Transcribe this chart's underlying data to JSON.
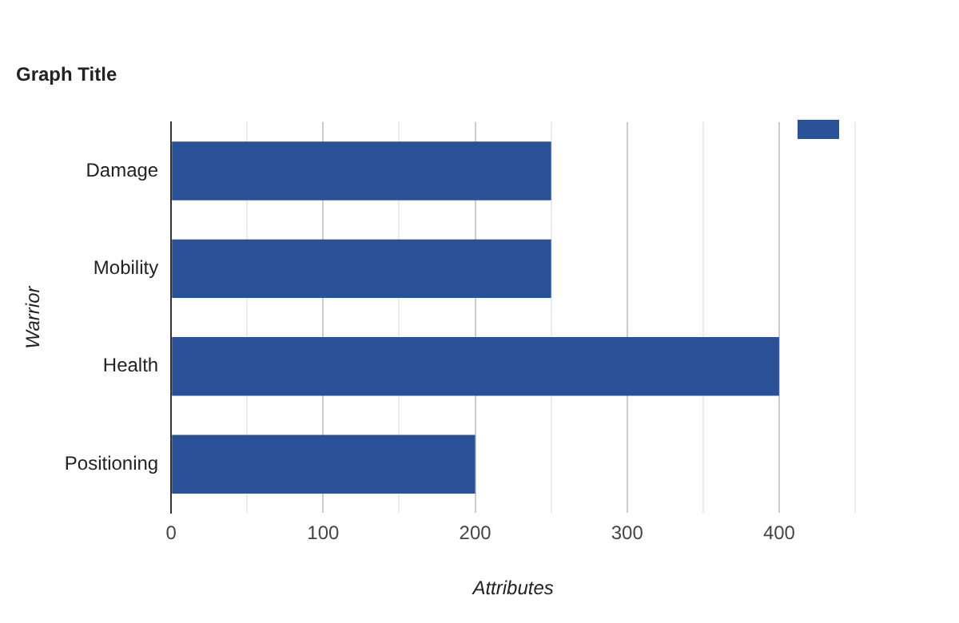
{
  "chart_data": {
    "type": "bar",
    "orientation": "horizontal",
    "title": "Graph Title",
    "xlabel": "Attributes",
    "ylabel": "Warrior",
    "categories": [
      "Damage",
      "Mobility",
      "Health",
      "Positioning"
    ],
    "series": [
      {
        "color": "#2a5098",
        "values": [
          250,
          250,
          400,
          200
        ]
      }
    ],
    "xlim": [
      0,
      450
    ],
    "xticks": [
      0,
      {
        "value": 50,
        "label": null
      },
      100,
      {
        "value": 150,
        "label": null
      },
      200,
      {
        "value": 250,
        "label": null
      },
      300,
      {
        "value": 350,
        "label": null
      },
      400,
      {
        "value": 450,
        "label": null
      }
    ],
    "grid": "x"
  }
}
